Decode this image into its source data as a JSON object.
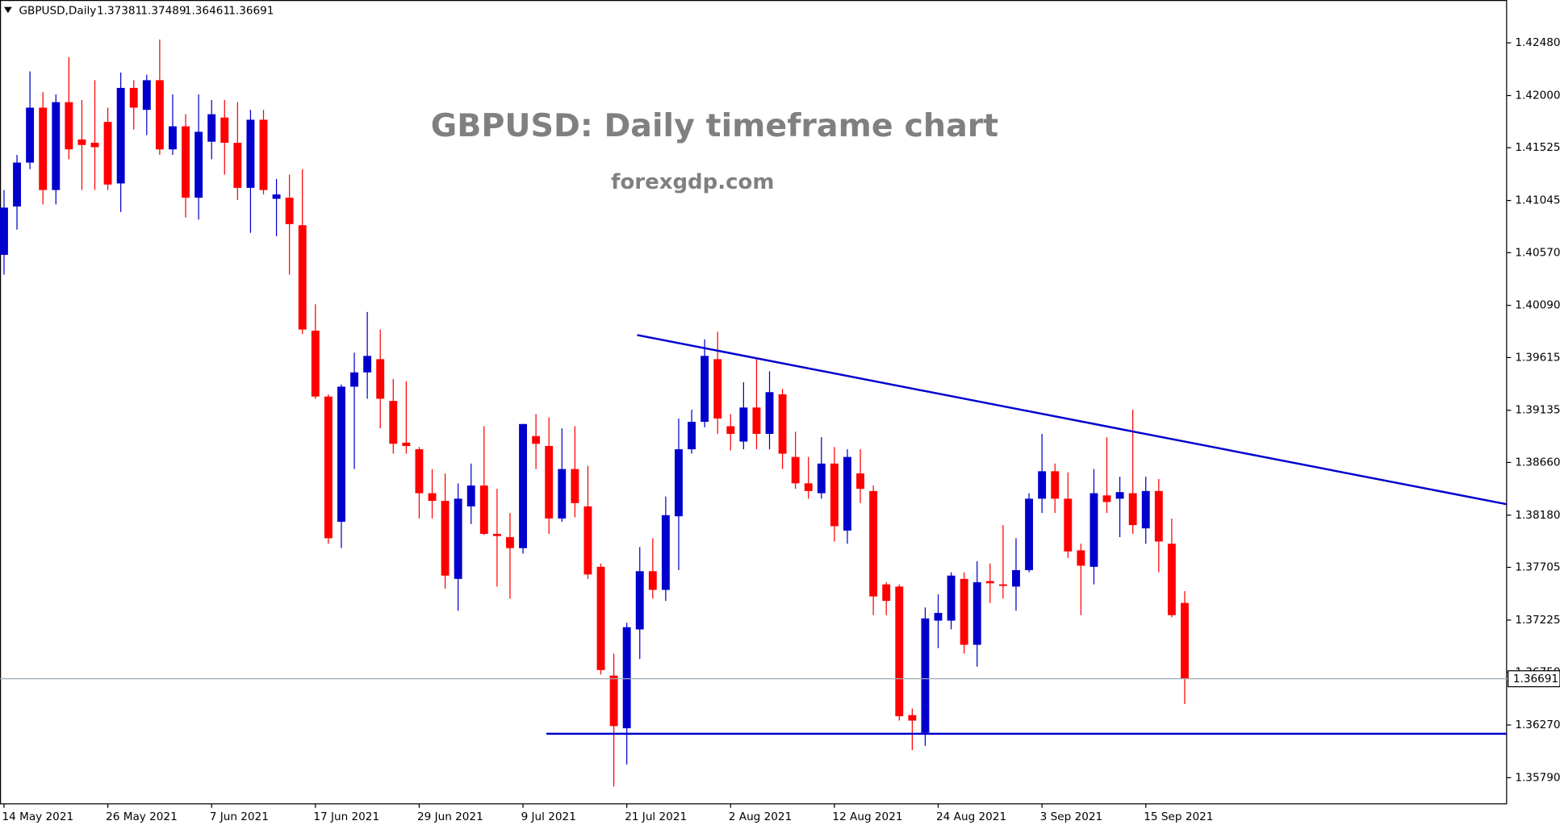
{
  "chart_data": {
    "type": "candlestick",
    "symbol": "GBPUSD,Daily",
    "title": "GBPUSD: Daily timeframe chart",
    "subtitle": "forexgdp.com",
    "up_color": "#0000cd",
    "down_color": "#ff0000",
    "categories": [
      "14 May 2021",
      null,
      null,
      null,
      null,
      null,
      null,
      null,
      "26 May 2021",
      null,
      null,
      null,
      null,
      null,
      null,
      null,
      "7 Jun 2021",
      null,
      null,
      null,
      null,
      null,
      null,
      null,
      "17 Jun 2021",
      null,
      null,
      null,
      null,
      null,
      null,
      null,
      "29 Jun 2021",
      null,
      null,
      null,
      null,
      null,
      null,
      null,
      "9 Jul 2021",
      null,
      null,
      null,
      null,
      null,
      null,
      null,
      "21 Jul 2021",
      null,
      null,
      null,
      null,
      null,
      null,
      null,
      "2 Aug 2021",
      null,
      null,
      null,
      null,
      null,
      null,
      null,
      "12 Aug 2021",
      null,
      null,
      null,
      null,
      null,
      null,
      null,
      "24 Aug 2021",
      null,
      null,
      null,
      null,
      null,
      null,
      null,
      "3 Sep 2021",
      null,
      null,
      null,
      null,
      null,
      null,
      null,
      "15 Sep 2021",
      null,
      null,
      null
    ],
    "open": [
      1.4055,
      1.4099,
      1.4139,
      1.4189,
      1.4114,
      1.4194,
      1.416,
      1.4157,
      1.4176,
      1.412,
      1.4207,
      1.4187,
      1.4214,
      1.4151,
      1.4172,
      1.4107,
      1.4158,
      1.418,
      1.4157,
      1.4116,
      1.4178,
      1.4106,
      1.4107,
      1.4082,
      1.3986,
      1.3926,
      1.3812,
      1.3935,
      1.3948,
      1.396,
      1.3922,
      1.3884,
      1.3878,
      1.3838,
      1.3831,
      1.376,
      1.3826,
      1.3845,
      1.3801,
      1.3798,
      1.3788,
      1.389,
      1.3881,
      1.3815,
      1.386,
      1.3826,
      1.3771,
      1.3672,
      1.3624,
      1.3714,
      1.3767,
      1.375,
      1.3817,
      1.3878,
      1.3903,
      1.396,
      1.3899,
      1.3885,
      1.3916,
      1.3892,
      1.3928,
      1.3871,
      1.3847,
      1.3838,
      1.3865,
      1.3804,
      1.3856,
      1.384,
      1.3755,
      1.3753,
      1.3636,
      1.362,
      1.3722,
      1.3722,
      1.376,
      1.37,
      1.3758,
      1.3755,
      1.3753,
      1.3768,
      1.3833,
      1.3858,
      1.3833,
      1.3786,
      1.3771,
      1.3836,
      1.3833,
      1.3838,
      1.3806,
      1.384,
      1.3792,
      1.37381
    ],
    "high": [
      1.4114,
      1.4146,
      1.4222,
      1.4203,
      1.4201,
      1.4235,
      1.4196,
      1.4214,
      1.4189,
      1.4221,
      1.4214,
      1.4219,
      1.4251,
      1.4201,
      1.4183,
      1.4201,
      1.4196,
      1.4196,
      1.4194,
      1.4187,
      1.4187,
      1.4124,
      1.4128,
      1.4133,
      1.401,
      1.3928,
      1.3937,
      1.3966,
      1.4003,
      1.3987,
      1.3942,
      1.394,
      1.388,
      1.386,
      1.3856,
      1.3847,
      1.3865,
      1.3899,
      1.3842,
      1.382,
      1.3901,
      1.391,
      1.3907,
      1.3897,
      1.3899,
      1.3863,
      1.3774,
      1.3692,
      1.372,
      1.3789,
      1.3797,
      1.3835,
      1.3906,
      1.3914,
      1.3978,
      1.3985,
      1.391,
      1.3939,
      1.396,
      1.3949,
      1.3933,
      1.3894,
      1.3871,
      1.3889,
      1.388,
      1.3878,
      1.3878,
      1.3845,
      1.3757,
      1.3755,
      1.3642,
      1.3734,
      1.3746,
      1.3766,
      1.3766,
      1.3776,
      1.3774,
      1.3809,
      1.3797,
      1.3838,
      1.3892,
      1.3865,
      1.3857,
      1.3792,
      1.386,
      1.3889,
      1.3853,
      1.3914,
      1.3853,
      1.3851,
      1.3815,
      1.37489
    ],
    "low": [
      1.4037,
      1.4078,
      1.4133,
      1.4101,
      1.4101,
      1.4142,
      1.4114,
      1.4114,
      1.4114,
      1.4094,
      1.4169,
      1.4164,
      1.4146,
      1.4146,
      1.4089,
      1.4087,
      1.4142,
      1.4128,
      1.4105,
      1.4075,
      1.411,
      1.4072,
      1.4037,
      1.3983,
      1.3924,
      1.3792,
      1.3788,
      1.386,
      1.3924,
      1.3897,
      1.3874,
      1.3874,
      1.3815,
      1.3815,
      1.3751,
      1.3731,
      1.381,
      1.38,
      1.3753,
      1.3742,
      1.3783,
      1.386,
      1.3801,
      1.3812,
      1.3816,
      1.376,
      1.3673,
      1.3571,
      1.3591,
      1.3687,
      1.3742,
      1.374,
      1.3768,
      1.3874,
      1.3898,
      1.3892,
      1.3877,
      1.3878,
      1.3878,
      1.3878,
      1.386,
      1.3842,
      1.3833,
      1.3833,
      1.3794,
      1.3792,
      1.3829,
      1.3727,
      1.3727,
      1.3631,
      1.3604,
      1.3608,
      1.3697,
      1.3714,
      1.3692,
      1.368,
      1.3738,
      1.3742,
      1.3731,
      1.3766,
      1.382,
      1.382,
      1.3779,
      1.3727,
      1.3755,
      1.382,
      1.3798,
      1.3801,
      1.3792,
      1.3766,
      1.3725,
      1.36461
    ],
    "close": [
      1.4098,
      1.4139,
      1.4189,
      1.4114,
      1.4194,
      1.4151,
      1.4155,
      1.4153,
      1.4119,
      1.4207,
      1.4189,
      1.4214,
      1.4151,
      1.4172,
      1.4107,
      1.4167,
      1.4183,
      1.4157,
      1.4116,
      1.4178,
      1.4114,
      1.411,
      1.4083,
      1.3987,
      1.3926,
      1.3797,
      1.3935,
      1.3948,
      1.3963,
      1.3924,
      1.3883,
      1.3881,
      1.3838,
      1.3831,
      1.3763,
      1.3833,
      1.3845,
      1.3801,
      1.3799,
      1.3788,
      1.3901,
      1.3883,
      1.3815,
      1.386,
      1.3829,
      1.3764,
      1.3677,
      1.3626,
      1.3716,
      1.3767,
      1.375,
      1.3818,
      1.3878,
      1.3903,
      1.3963,
      1.3906,
      1.3892,
      1.3916,
      1.3892,
      1.393,
      1.3874,
      1.3847,
      1.384,
      1.3865,
      1.3808,
      1.3871,
      1.3842,
      1.3744,
      1.374,
      1.3635,
      1.3631,
      1.3724,
      1.3729,
      1.3763,
      1.37,
      1.3757,
      1.3756,
      1.3754,
      1.3768,
      1.3833,
      1.3858,
      1.3833,
      1.3785,
      1.3772,
      1.3838,
      1.383,
      1.3839,
      1.3809,
      1.384,
      1.3794,
      1.3727,
      1.36691
    ],
    "ylim": [
      1.35552,
      1.4287
    ],
    "yticks": [
      {
        "value": 1.4248,
        "label": "1.42480"
      },
      {
        "value": 1.42,
        "label": "1.42000"
      },
      {
        "value": 1.41525,
        "label": "1.41525"
      },
      {
        "value": 1.41045,
        "label": "1.41045"
      },
      {
        "value": 1.4057,
        "label": "1.40570"
      },
      {
        "value": 1.4009,
        "label": "1.40090"
      },
      {
        "value": 1.39615,
        "label": "1.39615"
      },
      {
        "value": 1.39135,
        "label": "1.39135"
      },
      {
        "value": 1.3866,
        "label": "1.38660"
      },
      {
        "value": 1.3818,
        "label": "1.38180"
      },
      {
        "value": 1.37705,
        "label": "1.37705"
      },
      {
        "value": 1.37225,
        "label": "1.37225"
      },
      {
        "value": 1.3675,
        "label": "1.36750"
      },
      {
        "value": 1.3627,
        "label": "1.36270"
      },
      {
        "value": 1.3579,
        "label": "1.35790"
      }
    ],
    "trendlines": [
      {
        "color": "#0000cd",
        "x": [
          48.8,
          115.8
        ],
        "y": [
          1.3982,
          1.3828
        ]
      },
      {
        "color": "#0000cd",
        "x": [
          41.8,
          115.8
        ],
        "y": [
          1.3619,
          1.3619
        ]
      }
    ],
    "price_line_color": "#a0aab4",
    "grid": false
  }
}
